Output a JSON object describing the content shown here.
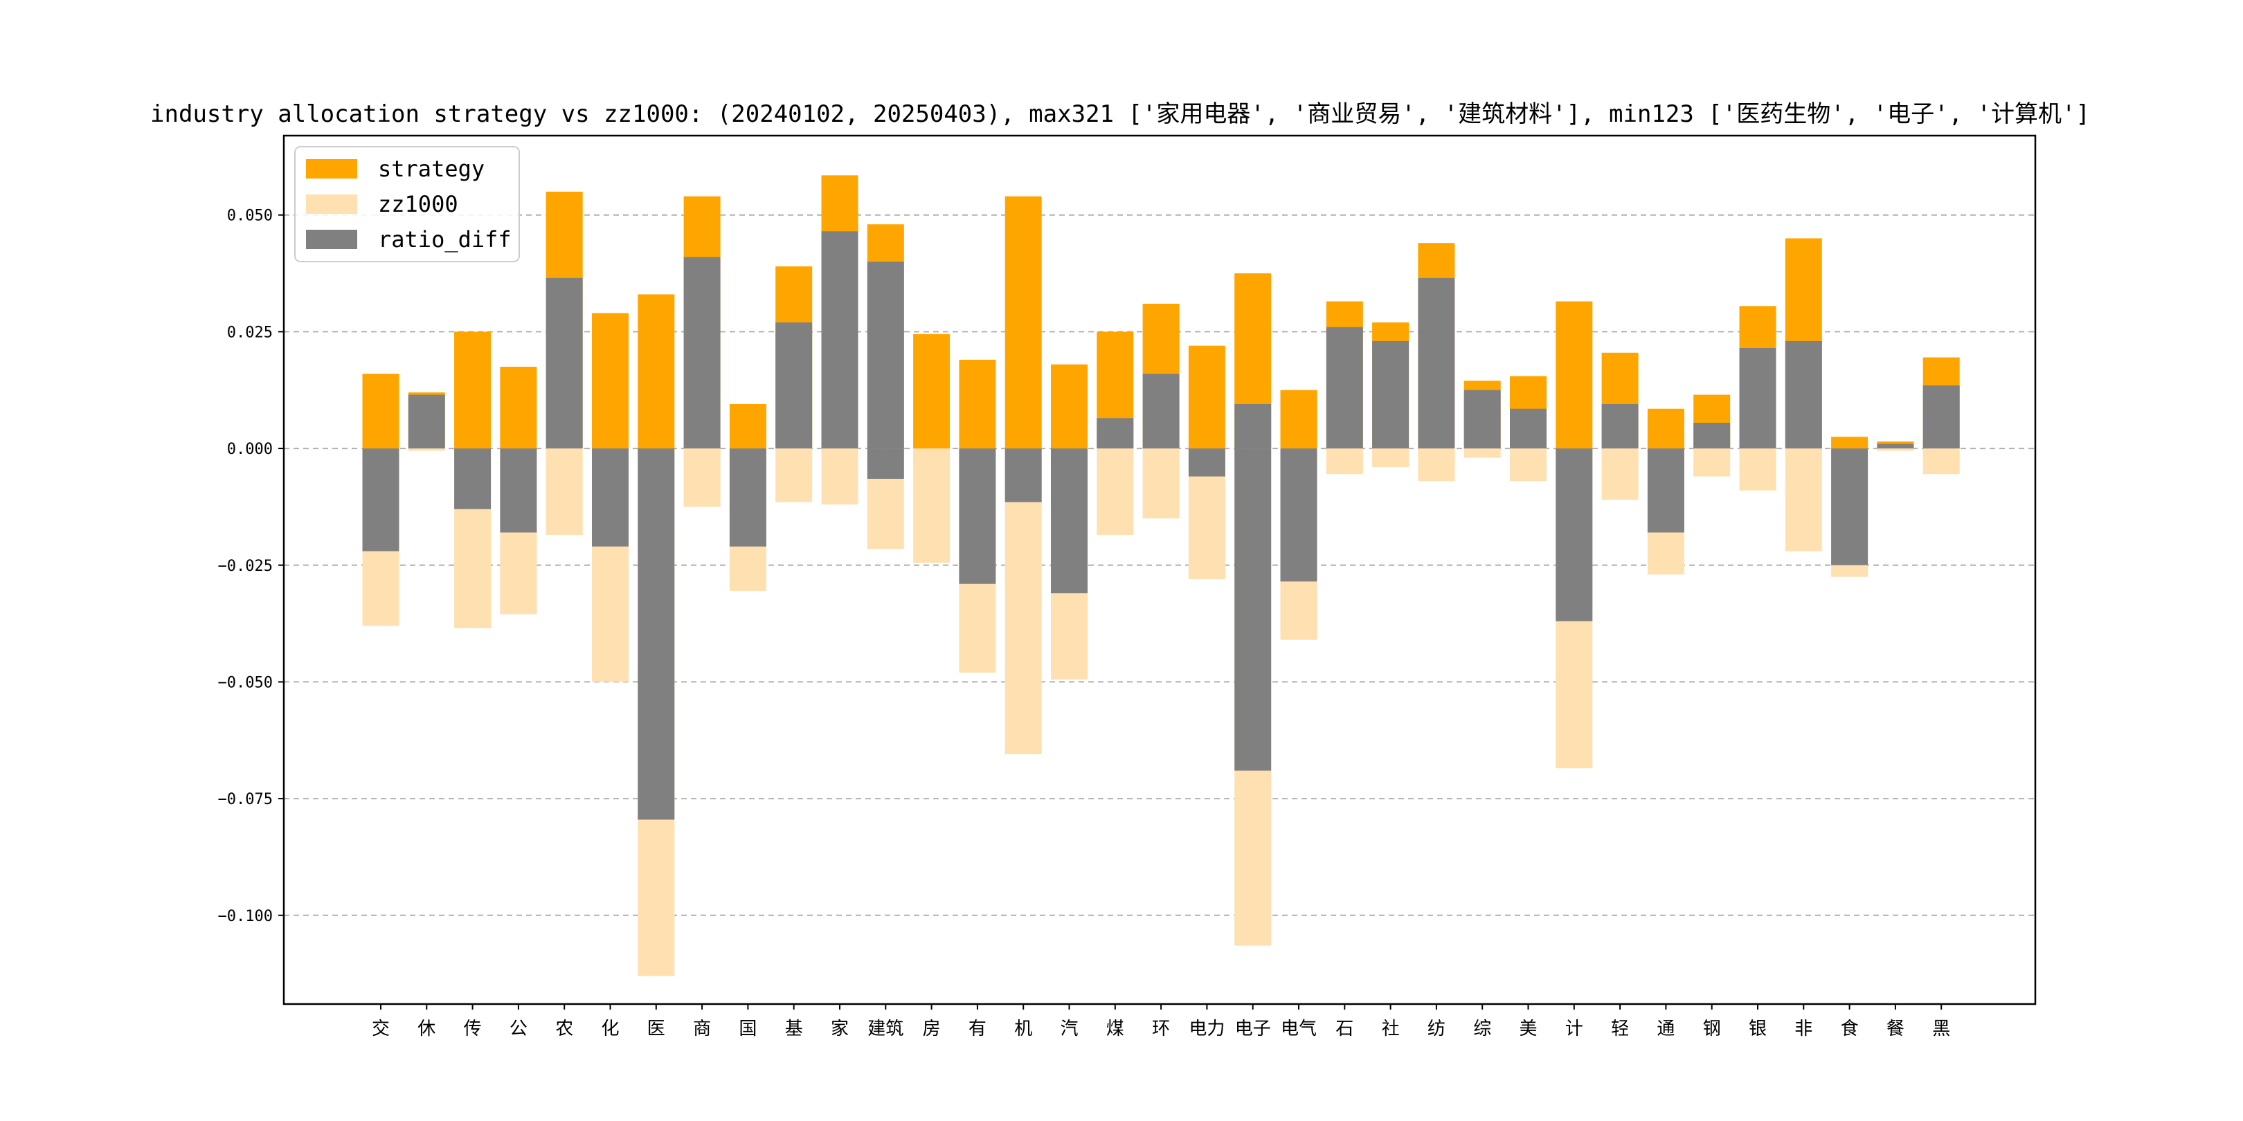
{
  "chart_data": {
    "type": "bar",
    "title": "industry allocation strategy vs zz1000: (20240102, 20250403), max321 ['家用电器', '商业贸易', '建筑材料'], min123 ['医药生物', '电子', '计算机']",
    "xlabel": "",
    "ylabel": "",
    "ylim": [
      -0.119,
      0.067
    ],
    "yticks": [
      0.05,
      0.025,
      0.0,
      -0.025,
      -0.05,
      -0.075,
      -0.1
    ],
    "ytick_labels": [
      "0.050",
      "0.025",
      "0.000",
      "−0.025",
      "−0.050",
      "−0.075",
      "−0.100"
    ],
    "grid": "horizontal dashed",
    "legend_position": "upper-left",
    "categories": [
      "交",
      "休",
      "传",
      "公",
      "农",
      "化",
      "医",
      "商",
      "国",
      "基",
      "家",
      "建筑",
      "房",
      "有",
      "机",
      "汽",
      "煤",
      "环",
      "电力",
      "电子",
      "电气",
      "石",
      "社",
      "纺",
      "综",
      "美",
      "计",
      "轻",
      "通",
      "钢",
      "银",
      "非",
      "食",
      "餐",
      "黑"
    ],
    "series": [
      {
        "name": "strategy",
        "color": "#FFA500",
        "values": [
          0.016,
          0.012,
          0.025,
          0.0175,
          0.055,
          0.029,
          0.033,
          0.054,
          0.0095,
          0.039,
          0.0585,
          0.048,
          0.0245,
          0.019,
          0.054,
          0.018,
          0.025,
          0.031,
          0.022,
          0.0375,
          0.0125,
          0.0315,
          0.027,
          0.044,
          0.0145,
          0.0155,
          0.0315,
          0.0205,
          0.0085,
          0.0115,
          0.0305,
          0.045,
          0.0025,
          0.0015,
          0.0195
        ]
      },
      {
        "name": "zz1000",
        "color": "#FFE0B0",
        "values": [
          -0.038,
          -0.0005,
          -0.0385,
          -0.0355,
          -0.0185,
          -0.05,
          -0.113,
          -0.0125,
          -0.0305,
          -0.0115,
          -0.012,
          -0.0215,
          -0.0245,
          -0.048,
          -0.0655,
          -0.0495,
          -0.0185,
          -0.015,
          -0.028,
          -0.1065,
          -0.041,
          -0.0055,
          -0.004,
          -0.007,
          -0.002,
          -0.007,
          -0.0685,
          -0.011,
          -0.027,
          -0.006,
          -0.009,
          -0.022,
          -0.0275,
          -0.0005,
          -0.0055
        ]
      },
      {
        "name": "ratio_diff",
        "color": "#808080",
        "values": [
          -0.022,
          0.0115,
          -0.013,
          -0.018,
          0.0365,
          -0.021,
          -0.0795,
          0.041,
          -0.021,
          0.027,
          0.0465,
          0.04,
          0.0,
          -0.029,
          -0.0115,
          -0.031,
          0.0065,
          0.016,
          -0.006,
          0.0095,
          -0.0285,
          0.026,
          0.023,
          0.0365,
          0.0125,
          0.0085,
          -0.037,
          0.0095,
          -0.018,
          0.0055,
          0.0215,
          0.023,
          -0.025,
          0.001,
          0.0135
        ]
      }
    ],
    "extra_bar_segments": [
      {
        "category_index": 11,
        "series": "ratio_diff",
        "values": [
          -0.0065
        ]
      },
      {
        "category_index": 19,
        "series": "ratio_diff",
        "values": [
          -0.069
        ]
      },
      {
        "category_index": 7,
        "series": "zz1000",
        "values": [
          -0.003
        ]
      },
      {
        "category_index": 23,
        "series": "zz1000",
        "values": [
          -0.0035
        ]
      }
    ]
  }
}
